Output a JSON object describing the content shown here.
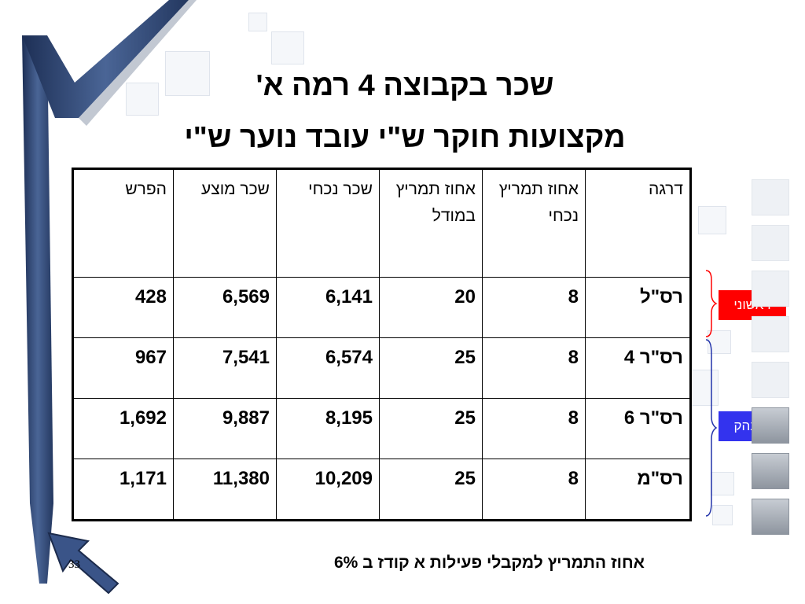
{
  "slide": {
    "title_line1": "שכר בקבוצה 4 רמה א'",
    "title_line2": "מקצועות חוקר ש\"י עובד נוער ש\"י",
    "page_number": "33",
    "footnote": "אחוז התמריץ למקבלי פעילות א קודז ב 6%"
  },
  "table": {
    "headers": [
      "דרגה",
      "אחוז תמריץ נכחי",
      "אחוז תמריץ במודל",
      "שכר נכחי",
      "שכר מוצע",
      "הפרש"
    ],
    "rows": [
      [
        "רס\"ל",
        "8",
        "20",
        "6,141",
        "6,569",
        "428"
      ],
      [
        "רס\"ר 4",
        "8",
        "25",
        "6,574",
        "7,541",
        "967"
      ],
      [
        "רס\"ר 6",
        "8",
        "25",
        "8,195",
        "9,887",
        "1,692"
      ],
      [
        "רס\"מ",
        "8",
        "25",
        "10,209",
        "11,380",
        "1,171"
      ]
    ]
  },
  "side_labels": {
    "first": "ראשוני",
    "expert": "מובהק"
  },
  "colors": {
    "first_label_bg": "#ff0000",
    "expert_label_bg": "#3333ee",
    "brace_red": "#ff0000",
    "brace_blue": "#2233aa"
  }
}
